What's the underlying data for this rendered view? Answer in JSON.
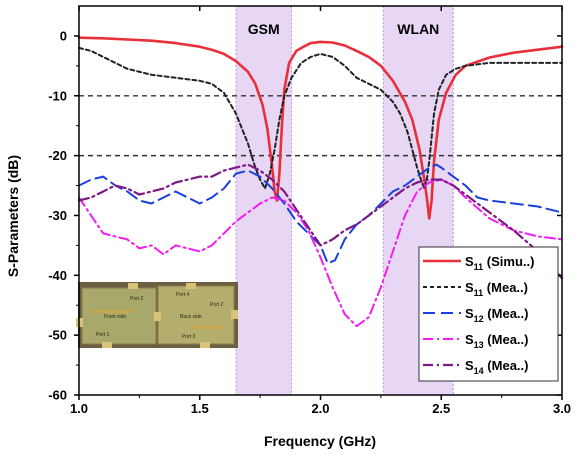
{
  "chart_data": {
    "type": "line",
    "xlabel": "Frequency (GHz)",
    "ylabel": "S-Parameters (dB)",
    "xlim": [
      1.0,
      3.0
    ],
    "ylim": [
      -60,
      5
    ],
    "xticks": [
      "1.0",
      "1.5",
      "2.0",
      "2.5",
      "3.0"
    ],
    "yticks": [
      "0",
      "-10",
      "-20",
      "-30",
      "-40",
      "-50",
      "-60"
    ],
    "reference_lines": [
      -10,
      -20
    ],
    "bands": [
      {
        "label": "GSM",
        "range": [
          1.65,
          1.88
        ],
        "color": "#e7d7f5"
      },
      {
        "label": "WLAN",
        "range": [
          2.26,
          2.55
        ],
        "color": "#e7d7f5"
      }
    ],
    "legend_position": "lower-right",
    "series": [
      {
        "name": "S11 (Simu..)",
        "sym": "S",
        "sub": "11",
        "suffix": " (Simu..)",
        "color": "#e8303a",
        "dash": "",
        "width": 2.6,
        "x": [
          1.0,
          1.1,
          1.2,
          1.3,
          1.4,
          1.5,
          1.55,
          1.6,
          1.65,
          1.7,
          1.73,
          1.76,
          1.78,
          1.8,
          1.81,
          1.82,
          1.83,
          1.84,
          1.85,
          1.87,
          1.9,
          1.93,
          1.96,
          2.0,
          2.05,
          2.1,
          2.15,
          2.2,
          2.25,
          2.3,
          2.35,
          2.38,
          2.41,
          2.43,
          2.44,
          2.45,
          2.46,
          2.47,
          2.49,
          2.52,
          2.56,
          2.6,
          2.7,
          2.8,
          2.9,
          3.0
        ],
        "y": [
          -0.3,
          -0.4,
          -0.6,
          -0.8,
          -1.2,
          -1.8,
          -2.3,
          -3.0,
          -4.2,
          -6.0,
          -8.0,
          -11.5,
          -15.5,
          -22.0,
          -26.0,
          -27.5,
          -23.0,
          -15.0,
          -9.0,
          -4.5,
          -2.5,
          -1.8,
          -1.2,
          -1.0,
          -1.1,
          -1.6,
          -2.5,
          -3.5,
          -5.0,
          -7.5,
          -11.0,
          -14.0,
          -19.0,
          -24.0,
          -27.0,
          -30.5,
          -27.5,
          -21.0,
          -14.0,
          -9.5,
          -6.5,
          -5.0,
          -3.6,
          -2.8,
          -2.3,
          -1.8
        ]
      },
      {
        "name": "S11 (Mea..)",
        "sym": "S",
        "sub": "11",
        "suffix": " (Mea..)",
        "color": "#222222",
        "dash": "4 3",
        "width": 2.0,
        "x": [
          1.0,
          1.05,
          1.1,
          1.2,
          1.3,
          1.4,
          1.5,
          1.55,
          1.6,
          1.65,
          1.7,
          1.73,
          1.75,
          1.77,
          1.79,
          1.81,
          1.83,
          1.85,
          1.88,
          1.92,
          1.96,
          2.0,
          2.05,
          2.1,
          2.15,
          2.2,
          2.25,
          2.3,
          2.33,
          2.36,
          2.38,
          2.4,
          2.42,
          2.43,
          2.44,
          2.45,
          2.46,
          2.47,
          2.49,
          2.52,
          2.56,
          2.6,
          2.7,
          2.8,
          2.9,
          3.0
        ],
        "y": [
          -2.0,
          -2.5,
          -3.5,
          -5.5,
          -6.5,
          -7.0,
          -7.5,
          -8.0,
          -9.5,
          -13.0,
          -18.0,
          -22.0,
          -24.0,
          -25.5,
          -23.0,
          -19.0,
          -14.0,
          -10.0,
          -7.0,
          -4.5,
          -3.5,
          -3.0,
          -3.5,
          -5.0,
          -7.0,
          -8.0,
          -9.0,
          -11.0,
          -13.0,
          -16.0,
          -19.0,
          -22.0,
          -24.5,
          -25.5,
          -24.0,
          -21.0,
          -17.0,
          -13.0,
          -9.0,
          -6.5,
          -5.5,
          -5.0,
          -4.5,
          -4.5,
          -4.5,
          -4.5
        ]
      },
      {
        "name": "S12 (Mea..)",
        "sym": "S",
        "sub": "12",
        "suffix": " (Mea..)",
        "color": "#1a3fe0",
        "dash": "12 6",
        "width": 2.0,
        "x": [
          1.0,
          1.05,
          1.1,
          1.15,
          1.2,
          1.25,
          1.3,
          1.35,
          1.4,
          1.45,
          1.5,
          1.55,
          1.6,
          1.65,
          1.7,
          1.75,
          1.8,
          1.85,
          1.9,
          1.95,
          2.0,
          2.03,
          2.06,
          2.1,
          2.15,
          2.2,
          2.25,
          2.3,
          2.35,
          2.4,
          2.45,
          2.48,
          2.5,
          2.55,
          2.6,
          2.65,
          2.7,
          2.8,
          2.9,
          3.0
        ],
        "y": [
          -25.0,
          -24.0,
          -23.5,
          -25.0,
          -26.0,
          -27.5,
          -28.0,
          -27.0,
          -26.0,
          -27.0,
          -28.0,
          -27.0,
          -25.5,
          -23.0,
          -22.5,
          -23.5,
          -25.5,
          -28.0,
          -31.0,
          -33.0,
          -35.0,
          -38.0,
          -37.5,
          -34.0,
          -31.5,
          -30.0,
          -28.0,
          -26.0,
          -25.0,
          -23.5,
          -22.0,
          -21.5,
          -22.0,
          -23.5,
          -25.0,
          -27.0,
          -27.5,
          -28.0,
          -28.5,
          -29.5
        ]
      },
      {
        "name": "S13 (Mea..)",
        "sym": "S",
        "sub": "13",
        "suffix": " (Mea..)",
        "color": "#f21cf2",
        "dash": "10 4 2 4",
        "width": 2.0,
        "x": [
          1.0,
          1.05,
          1.1,
          1.15,
          1.2,
          1.25,
          1.3,
          1.35,
          1.4,
          1.45,
          1.5,
          1.55,
          1.6,
          1.65,
          1.7,
          1.75,
          1.8,
          1.85,
          1.9,
          1.95,
          2.0,
          2.05,
          2.1,
          2.15,
          2.2,
          2.25,
          2.3,
          2.35,
          2.4,
          2.45,
          2.5,
          2.55,
          2.6,
          2.7,
          2.8,
          2.9,
          3.0
        ],
        "y": [
          -27.0,
          -30.0,
          -33.0,
          -33.5,
          -34.0,
          -35.5,
          -35.0,
          -36.5,
          -35.0,
          -35.5,
          -36.0,
          -35.0,
          -33.0,
          -31.0,
          -29.5,
          -28.0,
          -27.0,
          -27.5,
          -29.5,
          -32.5,
          -37.0,
          -42.0,
          -46.5,
          -48.5,
          -47.0,
          -42.0,
          -36.0,
          -30.0,
          -26.0,
          -24.5,
          -24.0,
          -25.0,
          -27.0,
          -30.5,
          -32.5,
          -33.5,
          -34.0
        ]
      },
      {
        "name": "S14 (Mea..)",
        "sym": "S",
        "sub": "14",
        "suffix": " (Mea..)",
        "color": "#7b1a85",
        "dash": "10 4 2 4",
        "width": 2.2,
        "x": [
          1.0,
          1.05,
          1.1,
          1.15,
          1.2,
          1.25,
          1.3,
          1.35,
          1.4,
          1.45,
          1.5,
          1.55,
          1.6,
          1.65,
          1.7,
          1.75,
          1.8,
          1.85,
          1.9,
          1.95,
          2.0,
          2.05,
          2.1,
          2.15,
          2.2,
          2.25,
          2.3,
          2.35,
          2.4,
          2.45,
          2.5,
          2.55,
          2.6,
          2.7,
          2.8,
          2.9,
          3.0
        ],
        "y": [
          -27.5,
          -27.0,
          -26.0,
          -25.0,
          -25.5,
          -26.5,
          -26.0,
          -25.5,
          -24.5,
          -24.0,
          -23.5,
          -23.5,
          -22.5,
          -22.0,
          -21.5,
          -22.5,
          -24.0,
          -26.0,
          -29.0,
          -32.0,
          -35.0,
          -34.0,
          -32.5,
          -31.5,
          -30.0,
          -28.5,
          -27.0,
          -25.5,
          -24.5,
          -24.0,
          -24.0,
          -25.0,
          -26.5,
          -29.5,
          -32.5,
          -36.0,
          -40.5
        ]
      }
    ]
  },
  "inset_photo": {
    "labels": [
      "Front side",
      "Port 1",
      "Port 2",
      "Back side",
      "Port 4",
      "Port 2",
      "Port 3"
    ]
  }
}
